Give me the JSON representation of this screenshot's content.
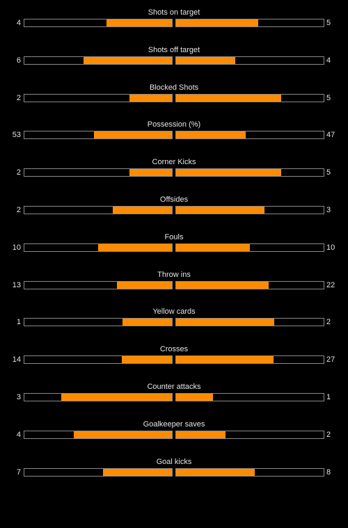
{
  "accent_color": "#ff8c00",
  "stats": [
    {
      "label": "Shots on target",
      "home": "4",
      "away": "5",
      "home_share": 0.444,
      "away_share": 0.556
    },
    {
      "label": "Shots off target",
      "home": "6",
      "away": "4",
      "home_share": 0.6,
      "away_share": 0.4
    },
    {
      "label": "Blocked Shots",
      "home": "2",
      "away": "5",
      "home_share": 0.286,
      "away_share": 0.714
    },
    {
      "label": "Possession (%)",
      "home": "53",
      "away": "47",
      "home_share": 0.53,
      "away_share": 0.47
    },
    {
      "label": "Corner Kicks",
      "home": "2",
      "away": "5",
      "home_share": 0.286,
      "away_share": 0.714
    },
    {
      "label": "Offsides",
      "home": "2",
      "away": "3",
      "home_share": 0.4,
      "away_share": 0.6
    },
    {
      "label": "Fouls",
      "home": "10",
      "away": "10",
      "home_share": 0.5,
      "away_share": 0.5
    },
    {
      "label": "Throw ins",
      "home": "13",
      "away": "22",
      "home_share": 0.371,
      "away_share": 0.629
    },
    {
      "label": "Yellow cards",
      "home": "1",
      "away": "2",
      "home_share": 0.333,
      "away_share": 0.667
    },
    {
      "label": "Crosses",
      "home": "14",
      "away": "27",
      "home_share": 0.341,
      "away_share": 0.659
    },
    {
      "label": "Counter attacks",
      "home": "3",
      "away": "1",
      "home_share": 0.75,
      "away_share": 0.25
    },
    {
      "label": "Goalkeeper saves",
      "home": "4",
      "away": "2",
      "home_share": 0.667,
      "away_share": 0.333
    },
    {
      "label": "Goal kicks",
      "home": "7",
      "away": "8",
      "home_share": 0.467,
      "away_share": 0.533
    }
  ]
}
